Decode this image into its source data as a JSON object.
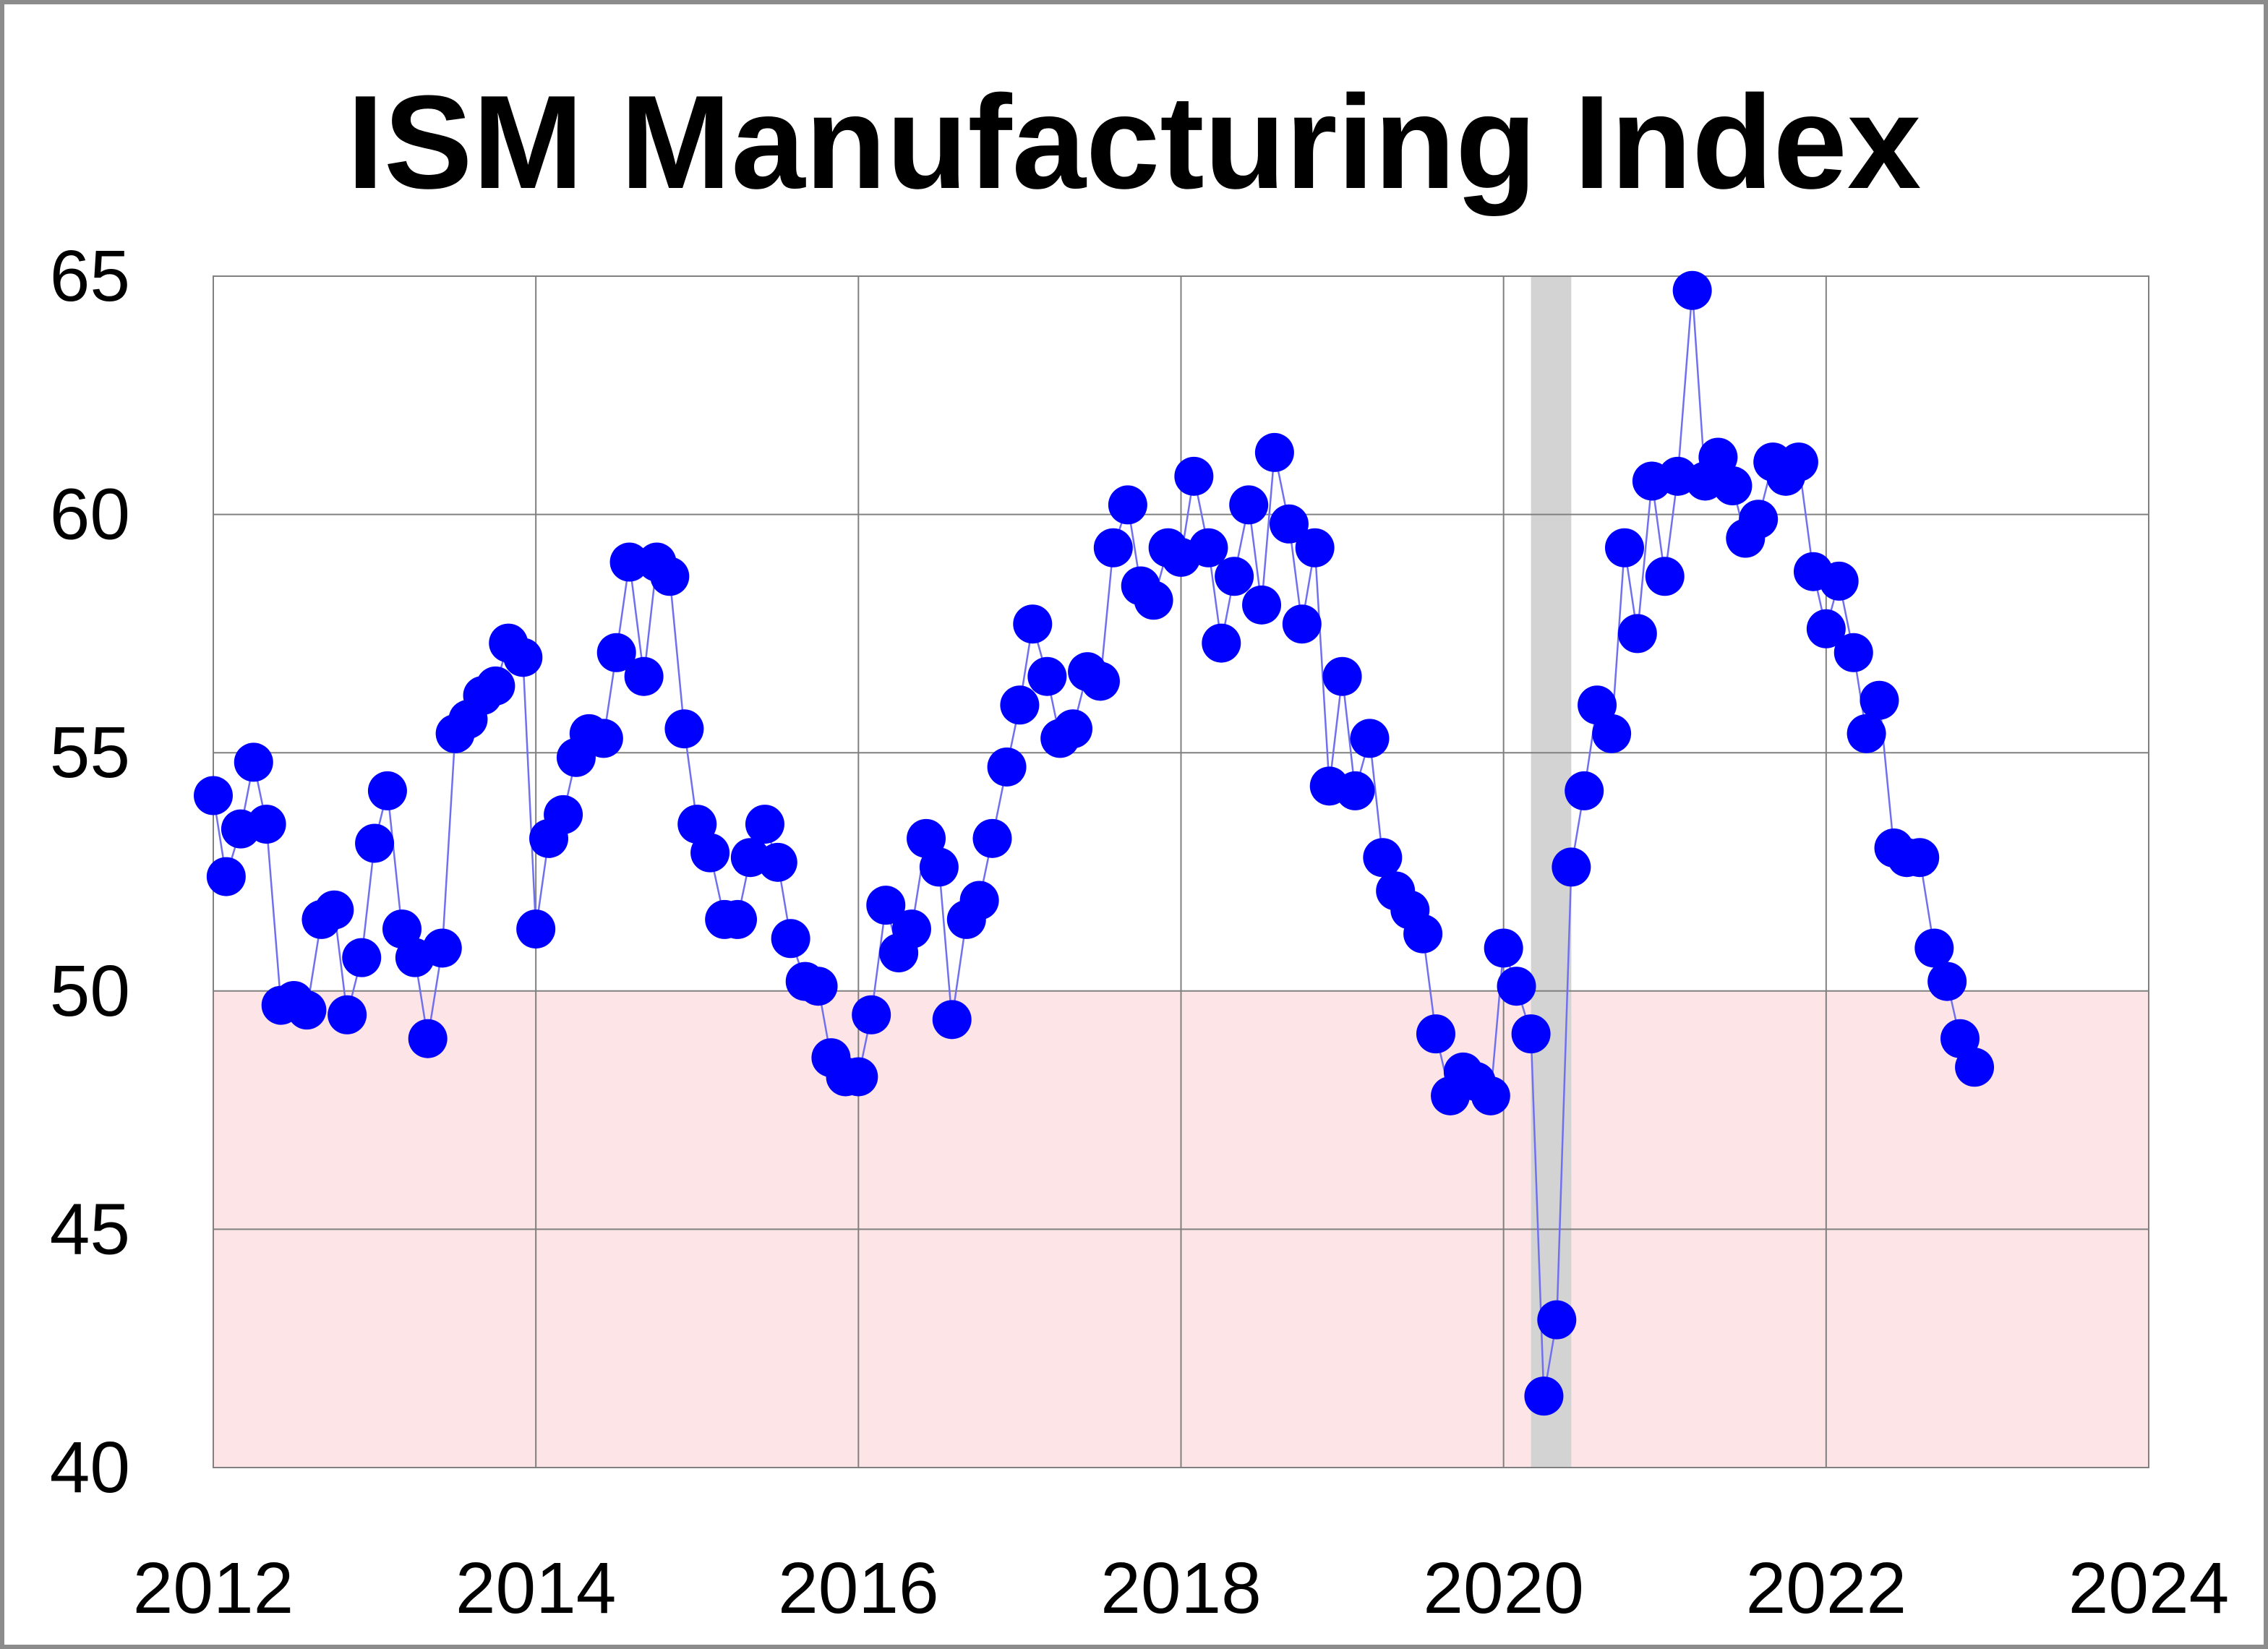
{
  "chart_data": {
    "type": "scatter",
    "title": "ISM Manufacturing Index",
    "xlabel": "",
    "ylabel": "",
    "xlim": [
      2012,
      2024
    ],
    "ylim": [
      40,
      65
    ],
    "x_ticks": [
      "2012",
      "2014",
      "2016",
      "2018",
      "2020",
      "2022",
      "2024"
    ],
    "y_ticks": [
      "40",
      "45",
      "50",
      "55",
      "60",
      "65"
    ],
    "grid": true,
    "legend": "none",
    "contraction_band": {
      "from": 40,
      "to": 50,
      "color": "#fde4e6"
    },
    "recession_band": {
      "from": 2020.17,
      "to": 2020.42,
      "color": "#d3d3d3"
    },
    "colors": {
      "marker": "#0000ff",
      "connector_line": "#7070ee",
      "grid": "#808080",
      "frame": "#8c8c8c"
    },
    "series": [
      {
        "marker": "circle",
        "connected": true,
        "x": [
          2012.0,
          2012.08,
          2012.17,
          2012.25,
          2012.33,
          2012.42,
          2012.5,
          2012.58,
          2012.67,
          2012.75,
          2012.83,
          2012.92,
          2013.0,
          2013.08,
          2013.17,
          2013.25,
          2013.33,
          2013.42,
          2013.5,
          2013.58,
          2013.67,
          2013.75,
          2013.83,
          2013.92,
          2014.0,
          2014.08,
          2014.17,
          2014.25,
          2014.33,
          2014.42,
          2014.5,
          2014.58,
          2014.67,
          2014.75,
          2014.83,
          2014.92,
          2015.0,
          2015.08,
          2015.17,
          2015.25,
          2015.33,
          2015.42,
          2015.5,
          2015.58,
          2015.67,
          2015.75,
          2015.83,
          2015.92,
          2016.0,
          2016.08,
          2016.17,
          2016.25,
          2016.33,
          2016.42,
          2016.5,
          2016.58,
          2016.67,
          2016.75,
          2016.83,
          2016.92,
          2017.0,
          2017.08,
          2017.17,
          2017.25,
          2017.33,
          2017.42,
          2017.5,
          2017.58,
          2017.67,
          2017.75,
          2017.83,
          2017.92,
          2018.0,
          2018.08,
          2018.17,
          2018.25,
          2018.33,
          2018.42,
          2018.5,
          2018.58,
          2018.67,
          2018.75,
          2018.83,
          2018.92,
          2019.0,
          2019.08,
          2019.17,
          2019.25,
          2019.33,
          2019.42,
          2019.5,
          2019.58,
          2019.67,
          2019.75,
          2019.83,
          2019.92,
          2020.0,
          2020.08,
          2020.17,
          2020.25,
          2020.33,
          2020.42,
          2020.5,
          2020.58,
          2020.67,
          2020.75,
          2020.83,
          2020.92,
          2021.0,
          2021.08,
          2021.17,
          2021.25,
          2021.33,
          2021.42,
          2021.5,
          2021.58,
          2021.67,
          2021.75,
          2021.83,
          2021.92,
          2022.0,
          2022.08,
          2022.17,
          2022.25,
          2022.33,
          2022.42,
          2022.5,
          2022.58,
          2022.67,
          2022.75,
          2022.83,
          2022.92
        ],
        "y": [
          54.1,
          52.4,
          53.4,
          54.8,
          53.5,
          49.7,
          49.8,
          49.6,
          51.5,
          51.7,
          49.5,
          50.7,
          53.1,
          54.2,
          51.3,
          50.7,
          49.0,
          50.9,
          55.4,
          55.7,
          56.2,
          56.4,
          57.3,
          57.0,
          51.3,
          53.2,
          53.7,
          54.9,
          55.4,
          55.3,
          57.1,
          59.0,
          56.6,
          59.0,
          58.7,
          55.5,
          53.5,
          52.9,
          51.5,
          51.5,
          52.8,
          53.5,
          52.7,
          51.1,
          50.2,
          50.1,
          48.6,
          48.2,
          48.2,
          49.5,
          51.8,
          50.8,
          51.3,
          53.2,
          52.6,
          49.4,
          51.5,
          51.9,
          53.2,
          54.7,
          56.0,
          57.7,
          56.6,
          55.3,
          55.5,
          56.7,
          56.5,
          59.3,
          60.2,
          58.5,
          58.2,
          59.3,
          59.1,
          60.8,
          59.3,
          57.3,
          58.7,
          60.2,
          58.1,
          61.3,
          59.8,
          57.7,
          59.3,
          54.3,
          56.6,
          54.2,
          55.3,
          52.8,
          52.1,
          51.7,
          51.2,
          49.1,
          47.8,
          48.3,
          48.1,
          47.8,
          50.9,
          50.1,
          49.1,
          41.5,
          43.1,
          52.6,
          54.2,
          56.0,
          55.4,
          59.3,
          57.5,
          60.7,
          58.7,
          60.8,
          64.7,
          60.7,
          61.2,
          60.6,
          59.5,
          59.9,
          61.1,
          60.8,
          61.1,
          58.8,
          57.6,
          58.6,
          57.1,
          55.4,
          56.1,
          53.0,
          52.8,
          52.8,
          50.9,
          50.2,
          49.0,
          48.4
        ]
      }
    ]
  }
}
